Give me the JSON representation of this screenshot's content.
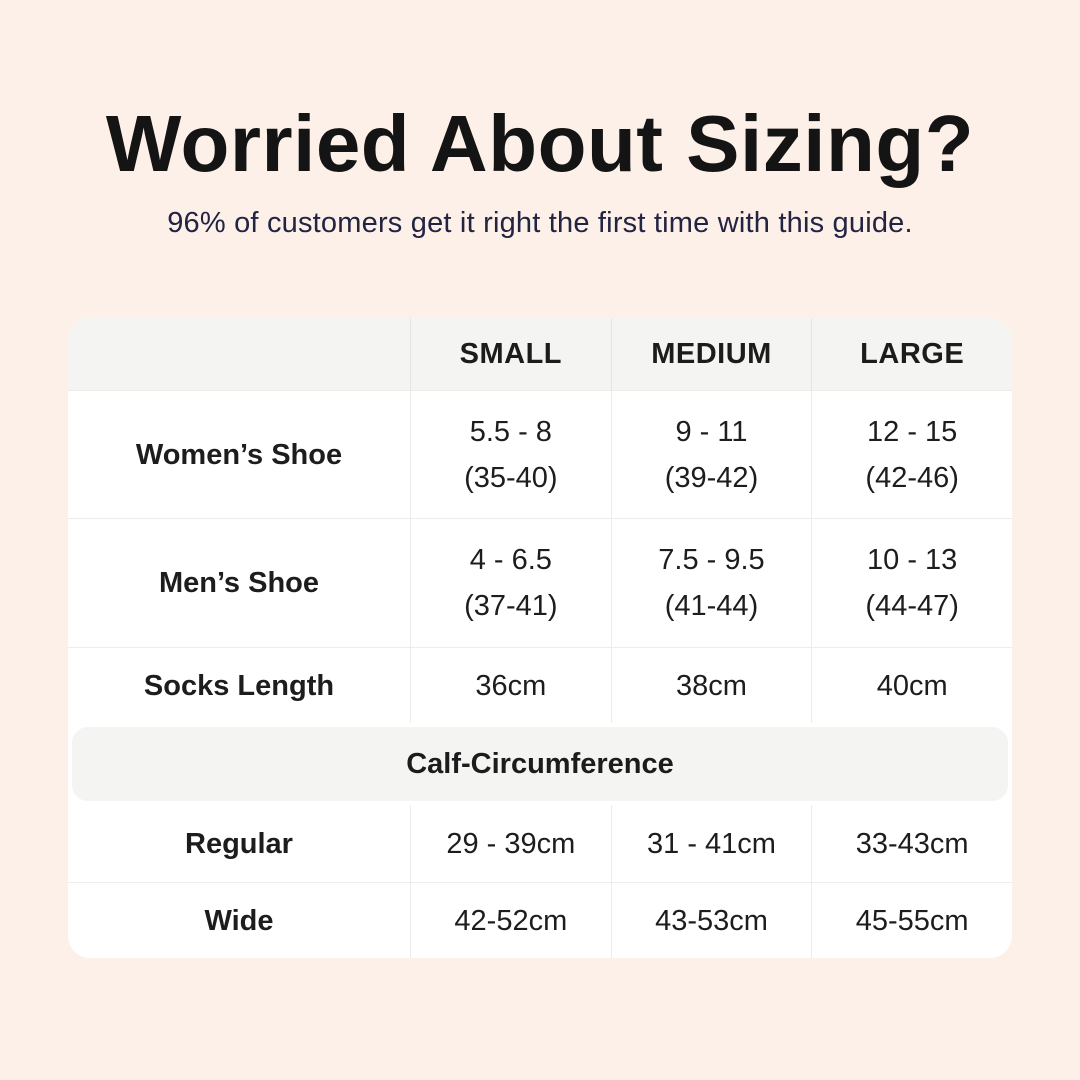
{
  "page": {
    "title": "Worried About Sizing?",
    "subtitle": "96% of customers get it right the first time with this guide."
  },
  "colors": {
    "background": "#fcf0e8",
    "card": "#ffffff",
    "header_band": "#f4f4f3",
    "border": "#ececea",
    "title_text": "#141414",
    "subtitle_text": "#232342",
    "table_text": "#1d1d1d"
  },
  "table": {
    "column_headers": [
      "SMALL",
      "MEDIUM",
      "LARGE"
    ],
    "rows": [
      {
        "label": "Women’s Shoe",
        "cells": [
          {
            "line1": "5.5 - 8",
            "line2": "(35-40)"
          },
          {
            "line1": "9 - 11",
            "line2": "(39-42)"
          },
          {
            "line1": "12 - 15",
            "line2": "(42-46)"
          }
        ]
      },
      {
        "label": "Men’s Shoe",
        "cells": [
          {
            "line1": "4 - 6.5",
            "line2": "(37-41)"
          },
          {
            "line1": "7.5 - 9.5",
            "line2": "(41-44)"
          },
          {
            "line1": "10 - 13",
            "line2": "(44-47)"
          }
        ]
      },
      {
        "label": "Socks Length",
        "cells": [
          {
            "line1": "36cm"
          },
          {
            "line1": "38cm"
          },
          {
            "line1": "40cm"
          }
        ]
      }
    ],
    "section_header": "Calf-Circumference",
    "section_rows": [
      {
        "label": "Regular",
        "cells": [
          {
            "line1": "29 - 39cm"
          },
          {
            "line1": "31 - 41cm"
          },
          {
            "line1": "33-43cm"
          }
        ]
      },
      {
        "label": "Wide",
        "cells": [
          {
            "line1": "42-52cm"
          },
          {
            "line1": "43-53cm"
          },
          {
            "line1": "45-55cm"
          }
        ]
      }
    ]
  }
}
